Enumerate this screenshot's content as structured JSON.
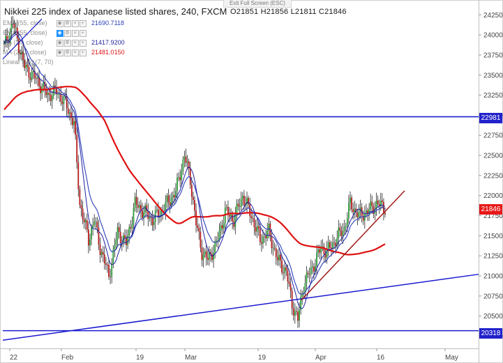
{
  "chart_title": "Nikkei 225 index of Japanese listed shares, 240, FXCM",
  "exit_fullscreen_label": "Exit Full Screen (ESC)",
  "ohlc": "O21851  H21856  L21811  C21846",
  "indicators": [
    {
      "name": "EMA (55, close)",
      "value": "21690.7118",
      "color": "#2b3fb8"
    },
    {
      "name": "EMA (55, close)",
      "value": "",
      "color": "#2b3fb8"
    },
    {
      "name": "MA (20, close)",
      "value": "21417.9200",
      "color": "#1f1f9f"
    },
    {
      "name": "MA (200, close)",
      "value": "21481.0150",
      "color": "#e01010"
    },
    {
      "name": "Linear Reg (7, 70)",
      "value": "",
      "color": "#1f1f9f"
    }
  ],
  "price_tags": [
    {
      "label": "22981",
      "color": "#2222cc"
    },
    {
      "label": "21846",
      "color": "#e81818"
    },
    {
      "label": "20318",
      "color": "#2222cc"
    }
  ],
  "colors": {
    "up": "#2e9c3a",
    "down": "#b41c1c",
    "ma200": "#e01010",
    "ema": "#2b3fb8",
    "hline": "#1a1ad0",
    "trend_red": "#a01818"
  },
  "chart_data": {
    "type": "candlestick",
    "title": "Nikkei 225 index of Japanese listed shares, 240, FXCM",
    "timeframe": "240",
    "y_ticks": [
      20250,
      20500,
      20750,
      21000,
      21250,
      21500,
      21750,
      22000,
      22250,
      22500,
      22750,
      23000,
      23250,
      23500,
      23750,
      24000,
      24250
    ],
    "ylim": [
      20150,
      24400
    ],
    "x_ticks": [
      "22",
      "Feb",
      "19",
      "Mar",
      "19",
      "Apr",
      "16",
      "May"
    ],
    "horizontal_levels": [
      22981,
      20318
    ],
    "last_close": 21846,
    "close_path_approx": [
      [
        0,
        23850
      ],
      [
        6,
        24150
      ],
      [
        14,
        23600
      ],
      [
        22,
        23450
      ],
      [
        30,
        23250
      ],
      [
        36,
        23300
      ],
      [
        42,
        23150
      ],
      [
        48,
        22900
      ],
      [
        52,
        21900
      ],
      [
        54,
        21750
      ],
      [
        58,
        21450
      ],
      [
        62,
        21700
      ],
      [
        66,
        21350
      ],
      [
        72,
        21000
      ],
      [
        78,
        21550
      ],
      [
        84,
        21400
      ],
      [
        90,
        21900
      ],
      [
        96,
        21800
      ],
      [
        102,
        21700
      ],
      [
        108,
        21800
      ],
      [
        114,
        21950
      ],
      [
        118,
        22050
      ],
      [
        124,
        22500
      ],
      [
        128,
        22200
      ],
      [
        132,
        21650
      ],
      [
        136,
        21300
      ],
      [
        140,
        21200
      ],
      [
        146,
        21400
      ],
      [
        152,
        21800
      ],
      [
        158,
        21700
      ],
      [
        164,
        22000
      ],
      [
        170,
        21750
      ],
      [
        176,
        21450
      ],
      [
        182,
        21550
      ],
      [
        188,
        21200
      ],
      [
        194,
        21050
      ],
      [
        198,
        20650
      ],
      [
        202,
        20450
      ],
      [
        206,
        20900
      ],
      [
        212,
        21100
      ],
      [
        218,
        21350
      ],
      [
        222,
        21300
      ],
      [
        228,
        21450
      ],
      [
        234,
        21600
      ],
      [
        238,
        21900
      ],
      [
        244,
        21750
      ],
      [
        250,
        21800
      ],
      [
        256,
        21900
      ],
      [
        262,
        21850
      ]
    ]
  }
}
